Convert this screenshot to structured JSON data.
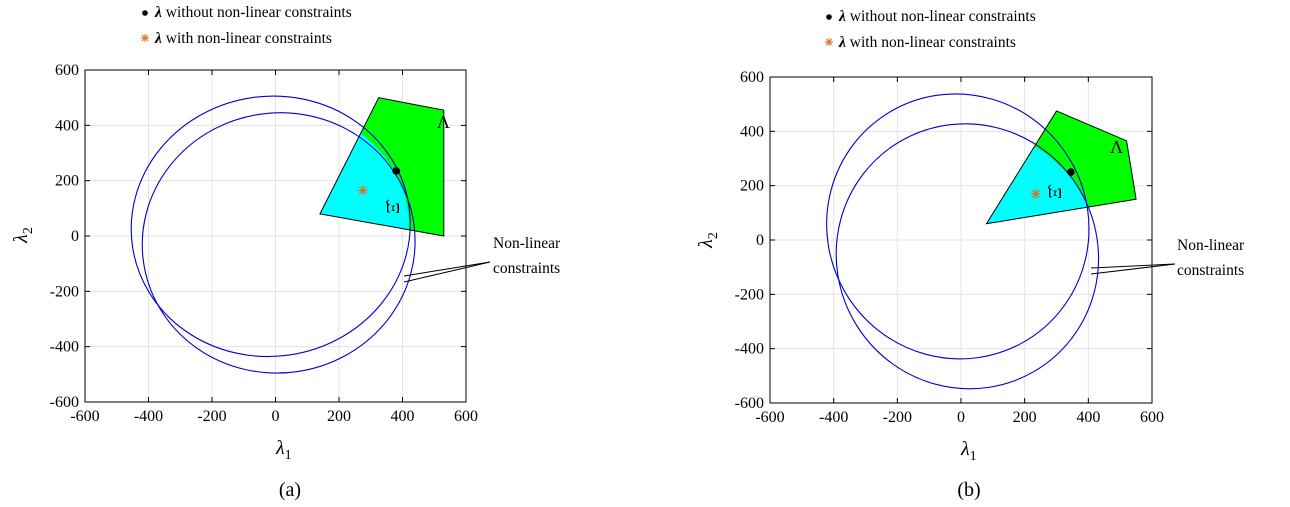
{
  "chart_data": [
    {
      "type": "scatter",
      "panel": "a",
      "caption": "(a)",
      "xlabel": "λ1",
      "ylabel": "λ2",
      "xlim": [
        -600,
        600
      ],
      "ylim": [
        -600,
        600
      ],
      "xticks": [
        -600,
        -400,
        -200,
        0,
        200,
        400,
        600
      ],
      "yticks": [
        -600,
        -400,
        -200,
        0,
        200,
        400,
        600
      ],
      "grid": true,
      "legend": {
        "placement": "top",
        "entries": [
          {
            "marker": "•",
            "text": "λ without non-linear constraints",
            "color": "#000000"
          },
          {
            "marker": "*",
            "text": "λ with non-linear constraints",
            "color": "#e07020"
          }
        ]
      },
      "regions": [
        {
          "name": "Λ",
          "color": "#00ff00",
          "polygon": [
            [
              325,
              500
            ],
            [
              530,
              455
            ],
            [
              530,
              0
            ],
            [
              140,
              80
            ]
          ]
        },
        {
          "name": "Ξ̂",
          "color": "#00ffff",
          "circle": {
            "cx": -30,
            "cy": 35,
            "r": 450
          }
        }
      ],
      "ellipses": [
        {
          "cx": -15,
          "cy": 35,
          "rx": 440,
          "ry": 470,
          "rot": -8,
          "color": "#0000cc"
        },
        {
          "cx": 10,
          "cy": -25,
          "rx": 430,
          "ry": 470,
          "rot": -8,
          "color": "#0000cc"
        }
      ],
      "points": [
        {
          "series": "without",
          "x": 380,
          "y": 235,
          "color": "#000000"
        },
        {
          "series": "with",
          "x": 275,
          "y": 165,
          "color": "#e07020"
        }
      ],
      "annotation": {
        "line1": "Non-linear",
        "line2": "constraints"
      }
    },
    {
      "type": "scatter",
      "panel": "b",
      "caption": "(b)",
      "xlabel": "λ1",
      "ylabel": "λ2",
      "xlim": [
        -600,
        600
      ],
      "ylim": [
        -600,
        600
      ],
      "xticks": [
        -600,
        -400,
        -200,
        0,
        200,
        400,
        600
      ],
      "yticks": [
        -600,
        -400,
        -200,
        0,
        200,
        400,
        600
      ],
      "grid": true,
      "legend": {
        "placement": "top",
        "entries": [
          {
            "marker": "•",
            "text": "λ without non-linear constraints",
            "color": "#000000"
          },
          {
            "marker": "*",
            "text": "λ with non-linear constraints",
            "color": "#e07020"
          }
        ]
      },
      "regions": [
        {
          "name": "Λ",
          "color": "#00ff00",
          "polygon": [
            [
              300,
              475
            ],
            [
              520,
              365
            ],
            [
              550,
              150
            ],
            [
              80,
              60
            ]
          ]
        },
        {
          "name": "Ξ̂",
          "color": "#00ffff",
          "circle": {
            "cx": -40,
            "cy": -40,
            "r": 470
          }
        }
      ],
      "ellipses": [
        {
          "cx": -10,
          "cy": 50,
          "rx": 410,
          "ry": 490,
          "rot": -30,
          "color": "#0000cc"
        },
        {
          "cx": 20,
          "cy": -60,
          "rx": 410,
          "ry": 490,
          "rot": -30,
          "color": "#0000cc"
        }
      ],
      "points": [
        {
          "series": "without",
          "x": 345,
          "y": 250,
          "color": "#000000"
        },
        {
          "series": "with",
          "x": 235,
          "y": 170,
          "color": "#e07020"
        }
      ],
      "annotation": {
        "line1": "Non-linear",
        "line2": "constraints"
      }
    }
  ]
}
